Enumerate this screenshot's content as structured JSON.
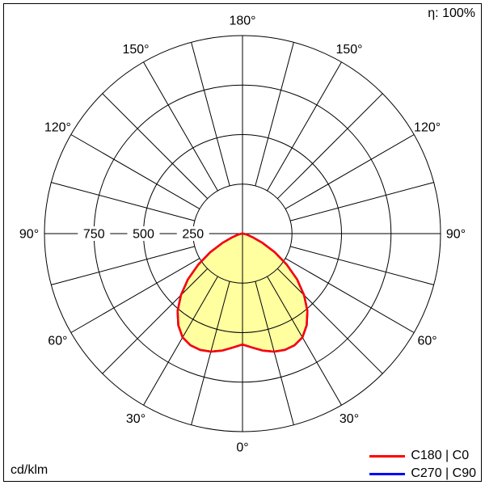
{
  "chart_data": {
    "type": "polar",
    "units": "cd/klm",
    "efficiency": "η: 100%",
    "r_max": 1000,
    "radial_ticks": [
      250,
      500,
      750,
      1000
    ],
    "radial_tick_labels": [
      "250",
      "500",
      "750"
    ],
    "angle_labels": [
      "0°",
      "30°",
      "60°",
      "90°",
      "120°",
      "150°",
      "180°"
    ],
    "angle_step_grid": 15,
    "beam_fill_color": "#ffffa0",
    "grid_color": "#000000",
    "gamma": [
      -90,
      -85,
      -80,
      -75,
      -70,
      -65,
      -60,
      -55,
      -50,
      -45,
      -40,
      -35,
      -30,
      -25,
      -20,
      -15,
      -10,
      -5,
      0,
      5,
      10,
      15,
      20,
      25,
      30,
      35,
      40,
      45,
      50,
      55,
      60,
      65,
      70,
      75,
      80,
      85,
      90
    ],
    "series": [
      {
        "name": "C180 | C0",
        "color": "#ff0000",
        "values": [
          2,
          5,
          12,
          26,
          58,
          112,
          188,
          272,
          360,
          440,
          510,
          565,
          605,
          622,
          625,
          617,
          600,
          578,
          560,
          578,
          600,
          617,
          625,
          622,
          605,
          565,
          510,
          440,
          360,
          272,
          188,
          112,
          58,
          26,
          12,
          5,
          2
        ]
      },
      {
        "name": "C270 | C90",
        "color": "#0000ff",
        "values": [
          2,
          5,
          12,
          26,
          58,
          112,
          188,
          272,
          360,
          440,
          510,
          565,
          605,
          622,
          625,
          617,
          600,
          578,
          560,
          578,
          600,
          617,
          625,
          622,
          605,
          565,
          510,
          440,
          360,
          272,
          188,
          112,
          58,
          26,
          12,
          5,
          2
        ]
      }
    ]
  }
}
